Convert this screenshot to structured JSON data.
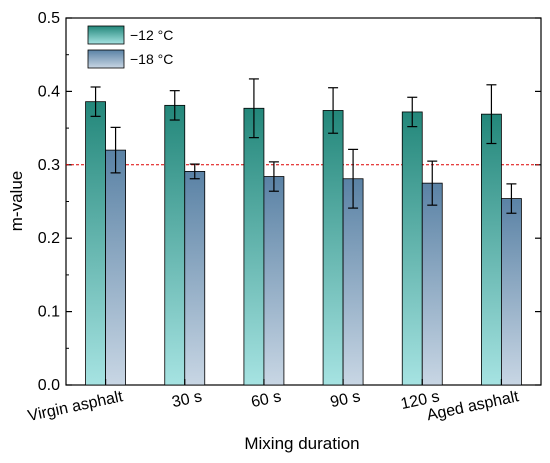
{
  "chart_data": {
    "type": "bar",
    "xlabel": "Mixing duration",
    "ylabel": "m-value",
    "ylim": [
      0,
      0.5
    ],
    "yticks": [
      "0.0",
      "0.1",
      "0.2",
      "0.3",
      "0.4",
      "0.5"
    ],
    "categories": [
      "Virgin asphalt",
      "30 s",
      "60 s",
      "90 s",
      "120 s",
      "Aged asphalt"
    ],
    "series": [
      {
        "name": "−12 °C",
        "values": [
          0.386,
          0.381,
          0.377,
          0.374,
          0.372,
          0.369
        ],
        "errors": [
          0.02,
          0.02,
          0.04,
          0.031,
          0.02,
          0.04
        ],
        "color": "#2a8a7c"
      },
      {
        "name": "−18 °C",
        "values": [
          0.32,
          0.291,
          0.284,
          0.281,
          0.275,
          0.254
        ],
        "errors": [
          0.031,
          0.01,
          0.02,
          0.04,
          0.03,
          0.02
        ],
        "color": "#5f86a8"
      }
    ],
    "reference_line": {
      "y": 0.3,
      "color": "#dd0000",
      "style": "dashed"
    },
    "legend_position": "top-left",
    "grid": false
  }
}
